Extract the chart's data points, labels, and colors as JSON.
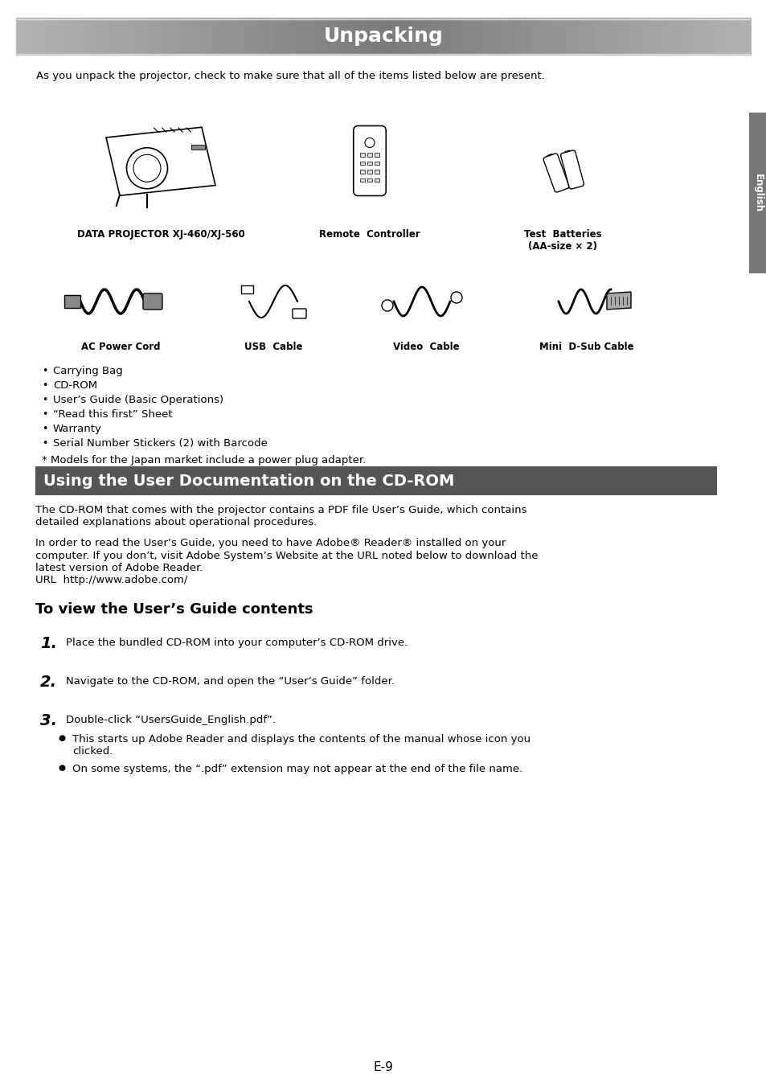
{
  "page_bg": "#ffffff",
  "title_bar_gray": "#888888",
  "title_text": "Unpacking",
  "title_text_color": "#ffffff",
  "title_font_size": 18,
  "section2_bar_color": "#555555",
  "section2_text": "Using the User Documentation on the CD-ROM",
  "section2_text_color": "#ffffff",
  "section2_font_size": 14,
  "intro_text": "As you unpack the projector, check to make sure that all of the items listed below are present.",
  "bullet_items": [
    "Carrying Bag",
    "CD-ROM",
    "User’s Guide (Basic Operations)",
    "“Read this first” Sheet",
    "Warranty",
    "Serial Number Stickers (2) with Barcode"
  ],
  "note_text": "* Models for the Japan market include a power plug adapter.",
  "cd_rom_para1_l1": "The CD-ROM that comes with the projector contains a PDF file User’s Guide, which contains",
  "cd_rom_para1_l2": "detailed explanations about operational procedures.",
  "cd_rom_para2_l1": "In order to read the User’s Guide, you need to have Adobe® Reader® installed on your",
  "cd_rom_para2_l2": "computer. If you don’t, visit Adobe System’s Website at the URL noted below to download the",
  "cd_rom_para2_l3": "latest version of Adobe Reader.",
  "cd_rom_para2_l4": "URL  http://www.adobe.com/",
  "subheading": "To view the User’s Guide contents",
  "step1": "Place the bundled CD-ROM into your computer’s CD-ROM drive.",
  "step2": "Navigate to the CD-ROM, and open the “User’s Guide” folder.",
  "step3": "Double-click “UsersGuide_English.pdf”.",
  "bullet3a_l1": "This starts up Adobe Reader and displays the contents of the manual whose icon you",
  "bullet3a_l2": "clicked.",
  "bullet3b": "On some systems, the “.pdf” extension may not appear at the end of the file name.",
  "english_label": "English",
  "page_number": "E-9",
  "lbl_projector": "DATA PROJECTOR XJ-460/XJ-560",
  "lbl_remote": "Remote  Controller",
  "lbl_batteries": "Test  Batteries",
  "lbl_batteries2": "(AA-size × 2)",
  "lbl_ac": "AC Power Cord",
  "lbl_usb": "USB  Cable",
  "lbl_video": "Video  Cable",
  "lbl_minidsub": "Mini  D-Sub Cable",
  "sidebar_color": "#777777",
  "title_line_color": "#bbbbbb"
}
